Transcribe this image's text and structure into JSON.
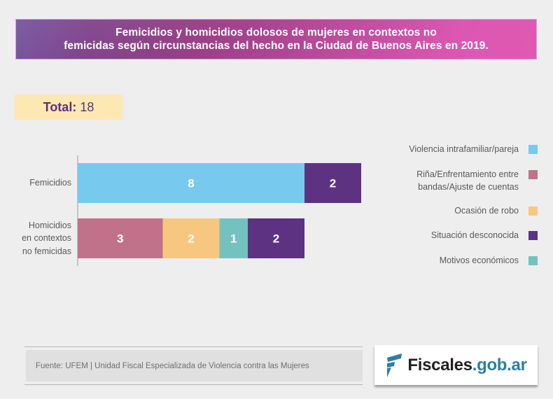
{
  "header": {
    "title": "Femicidios y homicidios dolosos de mujeres en contextos no\nfemicidas según circunstancias del hecho en la Ciudad de Buenos Aires en 2019."
  },
  "total": {
    "label": "Total:",
    "value": "18"
  },
  "chart_data": {
    "type": "bar",
    "orientation": "horizontal",
    "stacked": true,
    "title": "Femicidios y homicidios dolosos de mujeres en contextos no femicidas según circunstancias del hecho en la Ciudad de Buenos Aires en 2019.",
    "xlabel": "",
    "ylabel": "",
    "xlim": [
      0,
      10
    ],
    "grid": false,
    "legend_position": "right",
    "categories": [
      "Femicidios",
      "Homicidios\nen contextos\nno femicidas"
    ],
    "series": [
      {
        "name": "Violencia intrafamiliar/pareja",
        "color": "#78c9ee",
        "values": [
          8,
          0
        ]
      },
      {
        "name": "Riña/Enfrentamiento entre\nbandas/Ajuste de cuentas",
        "color": "#c0728b",
        "values": [
          0,
          3
        ]
      },
      {
        "name": "Ocasión de robo",
        "color": "#f8c77f",
        "values": [
          0,
          2
        ]
      },
      {
        "name": "Motivos económicos",
        "color": "#74c2c0",
        "values": [
          0,
          1
        ]
      },
      {
        "name": "Situación desconocida",
        "color": "#5e3283",
        "values": [
          2,
          2
        ]
      }
    ],
    "legend_order": [
      "Violencia intrafamiliar/pareja",
      "Riña/Enfrentamiento entre\nbandas/Ajuste de cuentas",
      "Ocasión de robo",
      "Situación desconocida",
      "Motivos económicos"
    ]
  },
  "footer": {
    "source": "Fuente: UFEM | Unidad Fiscal Especializada de Violencia contra las Mujeres"
  },
  "logo": {
    "icon": "fiscales-f-icon",
    "text_main": "Fiscales",
    "text_domain": ".gob.ar",
    "domain_color": "#2b7fa3"
  }
}
